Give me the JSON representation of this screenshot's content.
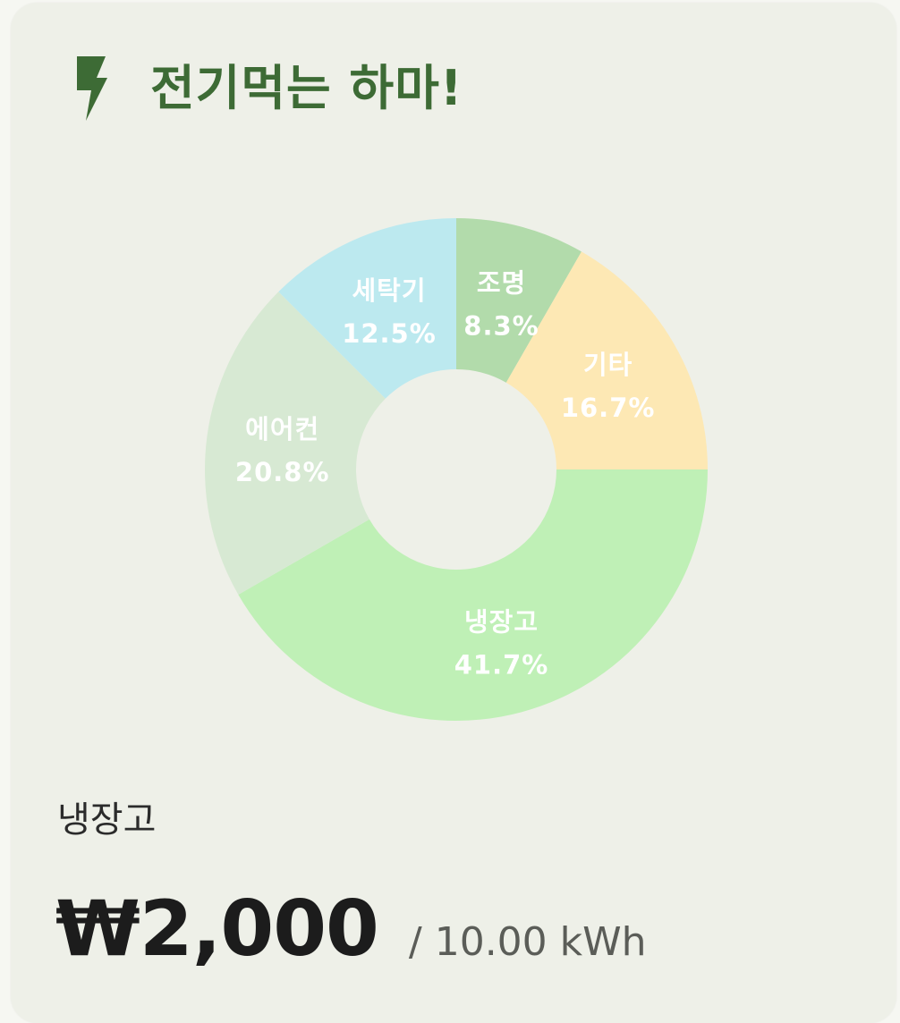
{
  "header": {
    "title": "전기먹는 하마!",
    "icon": "lightning-bolt-icon",
    "accent_color": "#3d6b35"
  },
  "chart_data": {
    "type": "pie",
    "donut": true,
    "categories": [
      "조명",
      "기타",
      "냉장고",
      "에어컨",
      "세탁기"
    ],
    "values": [
      8.3,
      16.7,
      41.7,
      20.8,
      12.5
    ],
    "labels": [
      "8.3%",
      "16.7%",
      "41.7%",
      "20.8%",
      "12.5%"
    ],
    "colors": [
      "#b2dbab",
      "#fde8b4",
      "#bff0b6",
      "#d7e9d3",
      "#bce9ef"
    ]
  },
  "selected": {
    "name": "냉장고",
    "price": "₩2,000",
    "usage": "/ 10.00 kWh"
  }
}
